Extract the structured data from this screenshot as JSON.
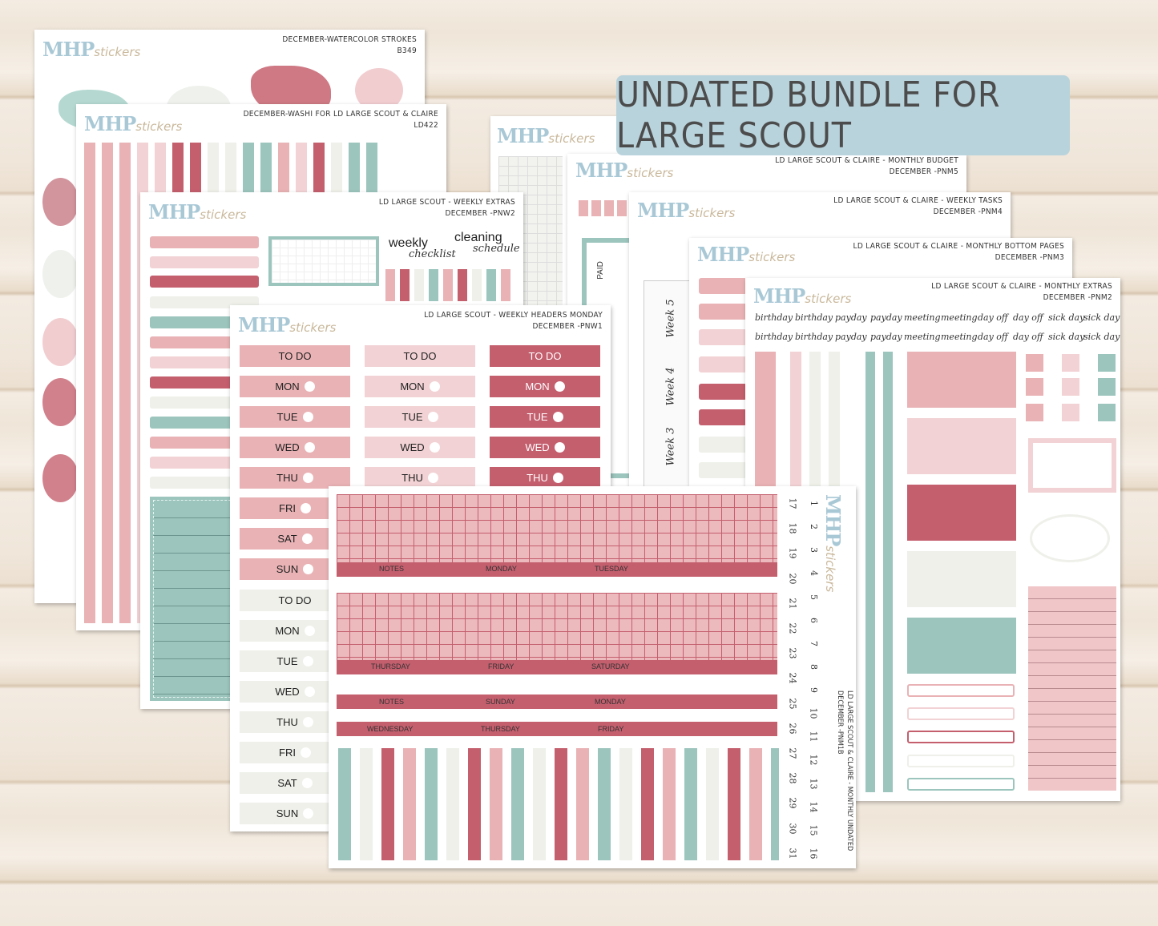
{
  "banner": {
    "title": "UNDATED BUNDLE FOR LARGE SCOUT"
  },
  "brand": {
    "logo_main": "MHP",
    "logo_sub": "stickers"
  },
  "sheets": [
    {
      "title": "DECEMBER-WATERCOLOR STROKES",
      "code": "B349"
    },
    {
      "title": "DECEMBER-WASHI FOR LD LARGE SCOUT & CLAIRE",
      "code": "LD422"
    },
    {
      "title": "LD LARGE SCOUT - WEEKLY EXTRAS",
      "code": "DECEMBER -PNW2"
    },
    {
      "title": "LD LARGE SCOUT - WEEKLY HEADERS MONDAY",
      "code": "DECEMBER -PNW1"
    },
    {
      "title": "LD LARGE SCOUT & CLAIRE - MONTHLY BUDGET",
      "code": "DECEMBER -PNM5"
    },
    {
      "title": "LD LARGE SCOUT & CLAIRE - WEEKLY TASKS",
      "code": "DECEMBER -PNM4"
    },
    {
      "title": "LD LARGE SCOUT & CLAIRE - MONTHLY BOTTOM PAGES",
      "code": "DECEMBER -PNM3"
    },
    {
      "title": "LD LARGE SCOUT & CLAIRE - MONTHLY EXTRAS",
      "code": "DECEMBER -PNM2"
    },
    {
      "title": "LD LARGE SCOUT & CLAIRE - MONTHLY UNDATED",
      "code": "DECEMBER -PNM1B"
    }
  ],
  "weekly_extras": {
    "weekly": "weekly",
    "checklist": "checklist",
    "cleaning": "cleaning",
    "schedule": "schedule"
  },
  "budget": {
    "paid": "PAID"
  },
  "weeks": [
    "Week 5",
    "Week 4",
    "Week 3"
  ],
  "headers": [
    "TO DO",
    "MON",
    "TUE",
    "WED",
    "THU",
    "FRI",
    "SAT",
    "SUN"
  ],
  "words_row1": [
    "birthday",
    "birthday",
    "payday",
    "payday",
    "meeting",
    "meeting",
    "day off",
    "day off",
    "sick day",
    "sick day"
  ],
  "words_row2": [
    "birthday",
    "birthday",
    "payday",
    "payday",
    "meeting",
    "meeting",
    "day off",
    "day off",
    "sick day",
    "sick day"
  ],
  "undated_labels": {
    "r1": [
      "NOTES",
      "MONDAY",
      "TUESDAY"
    ],
    "r2": [
      "THURSDAY",
      "FRIDAY",
      "SATURDAY"
    ],
    "r3": [
      "NOTES",
      "SUNDAY",
      "MONDAY"
    ],
    "r4": [
      "WEDNESDAY",
      "THURSDAY",
      "FRIDAY"
    ]
  },
  "numbers_col1": [
    "17",
    "18",
    "19",
    "20",
    "21",
    "22",
    "23",
    "24",
    "25",
    "26",
    "27",
    "28",
    "29",
    "30",
    "31"
  ],
  "numbers_col2": [
    "1",
    "2",
    "3",
    "4",
    "5",
    "6",
    "7",
    "8",
    "9",
    "10",
    "11",
    "12",
    "13",
    "14",
    "15",
    "16"
  ],
  "colors": {
    "pink": "#e9b2b5",
    "light_pink": "#f2d2d4",
    "rose": "#c45f6e",
    "cream": "#eef0e9",
    "teal": "#9cc5bd",
    "banner": "#b9d3dc"
  }
}
